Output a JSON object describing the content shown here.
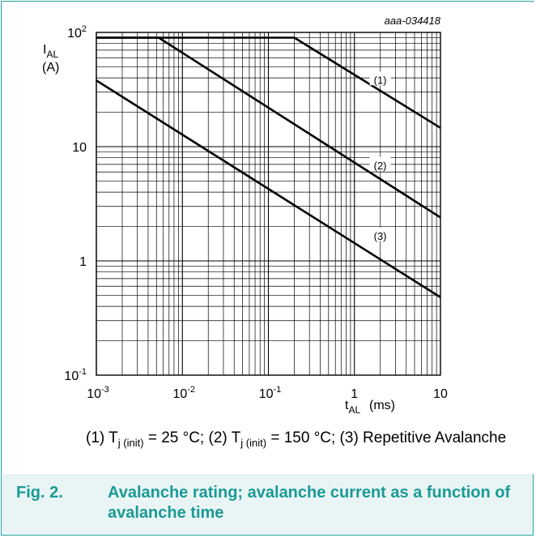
{
  "chart_data": {
    "type": "line",
    "scale": "log-log",
    "id_label": "aaa-034418",
    "ylabel": {
      "main": "I",
      "sub": "AL",
      "unit": "(A)"
    },
    "xlabel": {
      "main": "t",
      "sub": "AL",
      "unit": "(ms)"
    },
    "xlim": [
      0.001,
      10
    ],
    "ylim": [
      0.1,
      100
    ],
    "x_ticks": [
      {
        "value": 0.001,
        "base": "10",
        "exp": "-3"
      },
      {
        "value": 0.01,
        "base": "10",
        "exp": "-2"
      },
      {
        "value": 0.1,
        "base": "10",
        "exp": "-1"
      },
      {
        "value": 1,
        "base": "1",
        "exp": ""
      },
      {
        "value": 10,
        "base": "10",
        "exp": ""
      }
    ],
    "y_ticks": [
      {
        "value": 0.1,
        "base": "10",
        "exp": "-1"
      },
      {
        "value": 1,
        "base": "1",
        "exp": ""
      },
      {
        "value": 10,
        "base": "10",
        "exp": ""
      },
      {
        "value": 100,
        "base": "10",
        "exp": "2"
      }
    ],
    "grid": true,
    "series": [
      {
        "name": "(1)",
        "x": [
          0.001,
          0.2,
          10
        ],
        "y": [
          90,
          90,
          14.6
        ],
        "label_at": {
          "x": 1.95,
          "y": 38
        }
      },
      {
        "name": "(2)",
        "x": [
          0.001,
          0.0053,
          10
        ],
        "y": [
          90,
          90,
          2.4
        ],
        "label_at": {
          "x": 1.95,
          "y": 6.8
        }
      },
      {
        "name": "(3)",
        "x": [
          0.001,
          10
        ],
        "y": [
          38,
          0.48
        ],
        "label_at": {
          "x": 1.95,
          "y": 1.65
        }
      }
    ]
  },
  "caption": {
    "s1_pre": "(1) T",
    "s1_sub": "j (init)",
    "s1_post": " = 25 °C; (2) T",
    "s2_sub": "j (init)",
    "s2_post": " = 150 °C; (3) Repetitive Avalanche"
  },
  "figure": {
    "number": "Fig. 2.",
    "title": "Avalanche rating; avalanche current as a function of avalanche time"
  },
  "colors": {
    "accent": "#1a9a96",
    "border": "#2aa5a0",
    "panel_bg": "#e9f5f4"
  }
}
